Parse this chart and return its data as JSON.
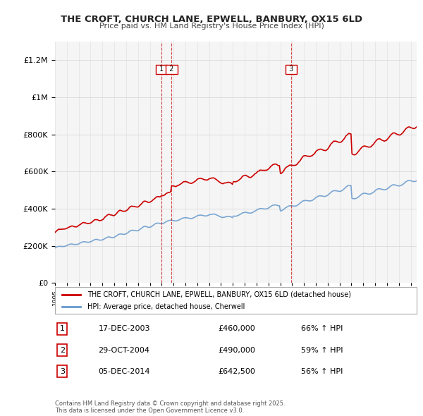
{
  "title": "THE CROFT, CHURCH LANE, EPWELL, BANBURY, OX15 6LD",
  "subtitle": "Price paid vs. HM Land Registry's House Price Index (HPI)",
  "legend_property": "THE CROFT, CHURCH LANE, EPWELL, BANBURY, OX15 6LD (detached house)",
  "legend_hpi": "HPI: Average price, detached house, Cherwell",
  "sales": [
    {
      "num": 1,
      "date": "17-DEC-2003",
      "price": "£460,000",
      "hpi": "66% ↑ HPI",
      "year": 2003.96
    },
    {
      "num": 2,
      "date": "29-OCT-2004",
      "price": "£490,000",
      "hpi": "59% ↑ HPI",
      "year": 2004.83
    },
    {
      "num": 3,
      "date": "05-DEC-2014",
      "price": "£642,500",
      "hpi": "56% ↑ HPI",
      "year": 2014.92
    }
  ],
  "sale_prices": [
    460000,
    490000,
    642500
  ],
  "footnote": "Contains HM Land Registry data © Crown copyright and database right 2025.\nThis data is licensed under the Open Government Licence v3.0.",
  "ylabel_color": "#333333",
  "background_color": "#ffffff",
  "plot_bg_color": "#f5f5f5",
  "grid_color": "#dddddd",
  "red_color": "#cc0000",
  "blue_color": "#6699cc",
  "dashed_color": "#cc0000",
  "ylim": [
    0,
    1300000
  ]
}
